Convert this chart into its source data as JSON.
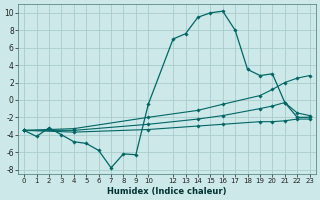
{
  "xlabel": "Humidex (Indice chaleur)",
  "bg_color": "#cce8e8",
  "grid_color": "#aacccc",
  "line_color": "#006666",
  "xlim": [
    -0.5,
    23.5
  ],
  "ylim": [
    -8.5,
    11.0
  ],
  "yticks": [
    -8,
    -6,
    -4,
    -2,
    0,
    2,
    4,
    6,
    8,
    10
  ],
  "xtick_vals": [
    0,
    1,
    2,
    3,
    4,
    5,
    6,
    7,
    8,
    9,
    10,
    12,
    13,
    14,
    15,
    16,
    17,
    18,
    19,
    20,
    21,
    22,
    23
  ],
  "xtick_labels": [
    "0",
    "1",
    "2",
    "3",
    "4",
    "5",
    "6",
    "7",
    "8",
    "9",
    "10",
    "12",
    "13",
    "14",
    "15",
    "16",
    "17",
    "18",
    "19",
    "20",
    "21",
    "22",
    "23"
  ],
  "series1_x": [
    0,
    1,
    2,
    3,
    4,
    5,
    6,
    7,
    8,
    9,
    10,
    12,
    13,
    14,
    15,
    16,
    17,
    18,
    19,
    20,
    21,
    22,
    23
  ],
  "series1_y": [
    -3.5,
    -4.2,
    -3.2,
    -4.0,
    -4.8,
    -5.0,
    -5.8,
    -7.8,
    -6.2,
    -6.3,
    -0.5,
    7.0,
    7.6,
    9.5,
    10.0,
    10.2,
    8.0,
    3.5,
    2.8,
    3.0,
    -0.3,
    -2.0,
    -2.0
  ],
  "line_upper_x": [
    0,
    4,
    10,
    14,
    16,
    19,
    20,
    21,
    22,
    23
  ],
  "line_upper_y": [
    -3.5,
    -3.3,
    -2.0,
    -1.2,
    -0.5,
    0.5,
    1.2,
    2.0,
    2.5,
    2.8
  ],
  "line_mid_x": [
    0,
    4,
    10,
    14,
    16,
    19,
    20,
    21,
    22,
    23
  ],
  "line_mid_y": [
    -3.5,
    -3.5,
    -2.8,
    -2.2,
    -1.8,
    -1.0,
    -0.7,
    -0.3,
    -1.5,
    -1.8
  ],
  "line_low_x": [
    0,
    4,
    10,
    14,
    16,
    19,
    20,
    21,
    22,
    23
  ],
  "line_low_y": [
    -3.5,
    -3.7,
    -3.4,
    -3.0,
    -2.8,
    -2.5,
    -2.5,
    -2.4,
    -2.2,
    -2.2
  ]
}
